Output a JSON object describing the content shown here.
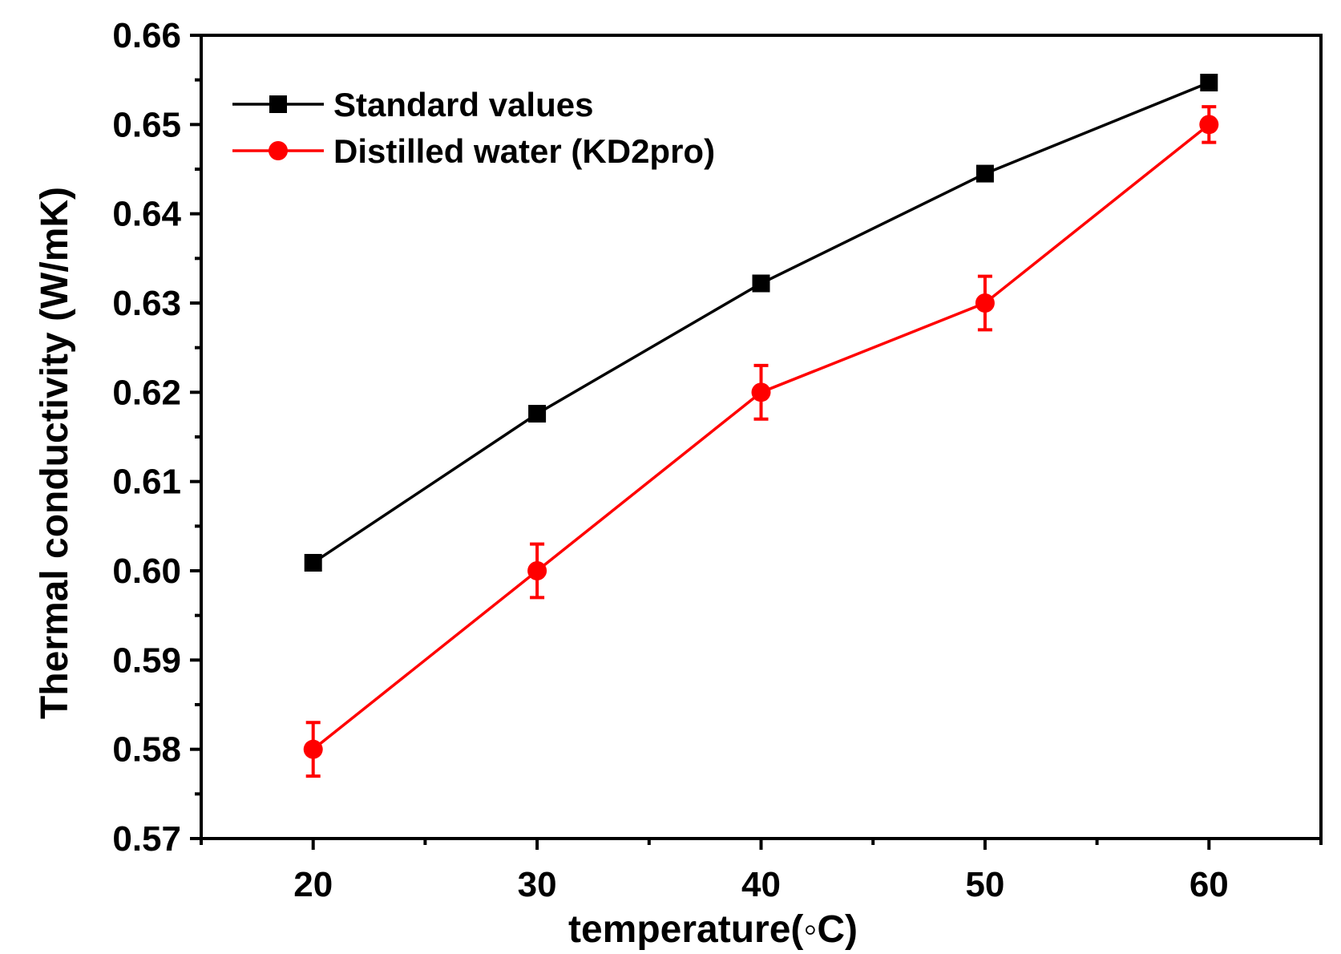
{
  "chart_data": {
    "type": "line",
    "title": "",
    "xlabel": "temperature(◦C)",
    "ylabel": "Thermal conductivity (W/mK)",
    "xlim": [
      15,
      65
    ],
    "ylim": [
      0.57,
      0.66
    ],
    "x_ticks": [
      20,
      30,
      40,
      50,
      60
    ],
    "x_tick_labels": [
      "20",
      "30",
      "40",
      "50",
      "60"
    ],
    "y_ticks": [
      0.57,
      0.58,
      0.59,
      0.6,
      0.61,
      0.62,
      0.63,
      0.64,
      0.65,
      0.66
    ],
    "y_tick_labels": [
      "0.57",
      "0.58",
      "0.59",
      "0.60",
      "0.61",
      "0.62",
      "0.63",
      "0.64",
      "0.65",
      "0.66"
    ],
    "grid": false,
    "legend_position": "top-left",
    "series": [
      {
        "name": "Standard values",
        "color": "#000000",
        "marker": "square",
        "x": [
          20,
          30,
          40,
          50,
          60
        ],
        "y": [
          0.6009,
          0.6176,
          0.6322,
          0.6445,
          0.6547
        ]
      },
      {
        "name": "Distilled water (KD2pro)",
        "color": "#ff0000",
        "marker": "circle",
        "x": [
          20,
          30,
          40,
          50,
          60
        ],
        "y": [
          0.58,
          0.6,
          0.62,
          0.63,
          0.65
        ],
        "error": [
          0.003,
          0.003,
          0.003,
          0.003,
          0.002
        ]
      }
    ]
  }
}
